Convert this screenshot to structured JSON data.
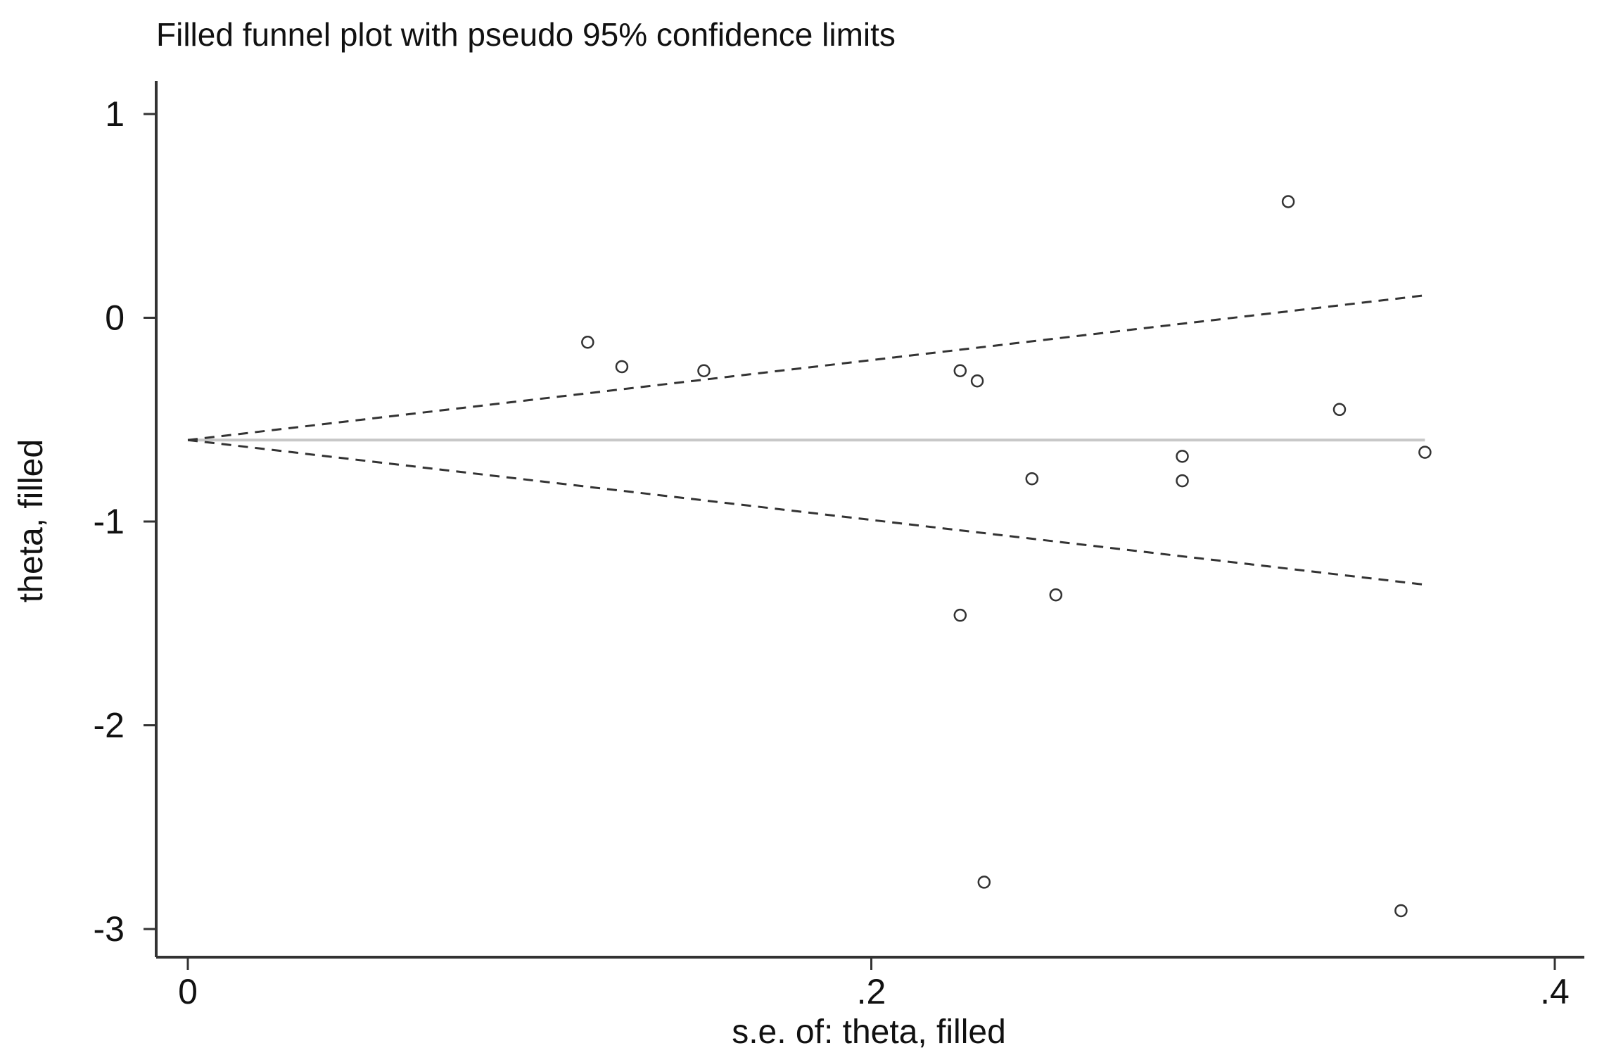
{
  "chart_data": {
    "type": "scatter",
    "title": "Filled funnel plot with pseudo 95% confidence limits",
    "xlabel": "s.e. of: theta, filled",
    "ylabel": "theta, filled",
    "xlim": [
      -0.01,
      0.41
    ],
    "ylim": [
      -3.15,
      1.1
    ],
    "x_ticks": [
      {
        "value": 0,
        "label": "0"
      },
      {
        "value": 0.2,
        "label": ".2"
      },
      {
        "value": 0.4,
        "label": ".4"
      }
    ],
    "y_ticks": [
      {
        "value": 1,
        "label": "1"
      },
      {
        "value": 0,
        "label": "0"
      },
      {
        "value": -1,
        "label": "-1"
      },
      {
        "value": -2,
        "label": "-2"
      },
      {
        "value": -3,
        "label": "-3"
      }
    ],
    "pooled_estimate": -0.6,
    "pooled_line_x": [
      0,
      0.362
    ],
    "ci_limits": {
      "x": [
        0,
        0.362
      ],
      "upper": [
        -0.6,
        0.11
      ],
      "lower": [
        -0.6,
        -1.31
      ]
    },
    "points": [
      {
        "x": 0.117,
        "y": -0.12
      },
      {
        "x": 0.127,
        "y": -0.24
      },
      {
        "x": 0.151,
        "y": -0.26
      },
      {
        "x": 0.226,
        "y": -0.26
      },
      {
        "x": 0.231,
        "y": -0.31
      },
      {
        "x": 0.247,
        "y": -0.79
      },
      {
        "x": 0.291,
        "y": -0.68
      },
      {
        "x": 0.291,
        "y": -0.8
      },
      {
        "x": 0.322,
        "y": 0.57
      },
      {
        "x": 0.337,
        "y": -0.45
      },
      {
        "x": 0.362,
        "y": -0.66
      },
      {
        "x": 0.254,
        "y": -1.36
      },
      {
        "x": 0.226,
        "y": -1.46
      },
      {
        "x": 0.233,
        "y": -2.77
      },
      {
        "x": 0.355,
        "y": -2.91
      }
    ]
  }
}
